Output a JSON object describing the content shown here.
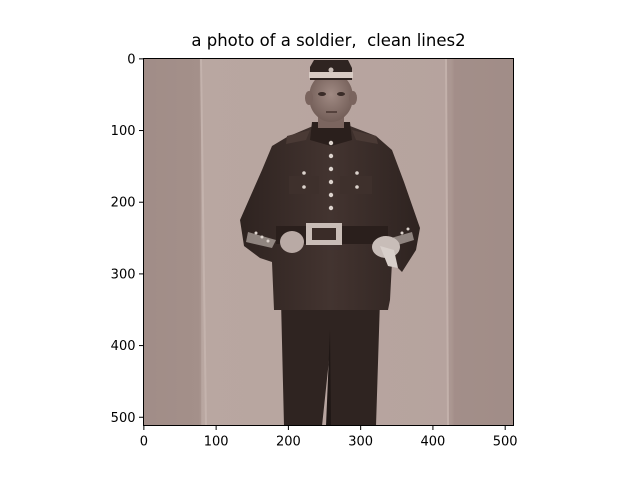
{
  "figure": {
    "title": "a photo of a soldier,  clean lines2"
  },
  "image_axes": {
    "x_ticks": [
      0,
      100,
      200,
      300,
      400,
      500
    ],
    "y_ticks": [
      0,
      100,
      200,
      300,
      400,
      500
    ],
    "x_range": [
      0,
      512
    ],
    "y_range": [
      512,
      0
    ]
  },
  "colors": {
    "wall_dark": "#a28e88",
    "wall_light": "#b7a39e",
    "uniform": "#3a2c28",
    "uniform_shadow": "#2a1f1c",
    "skin": "#8e766f",
    "button": "#d8cfc9",
    "background_page": "#ffffff",
    "axis": "#000000"
  }
}
